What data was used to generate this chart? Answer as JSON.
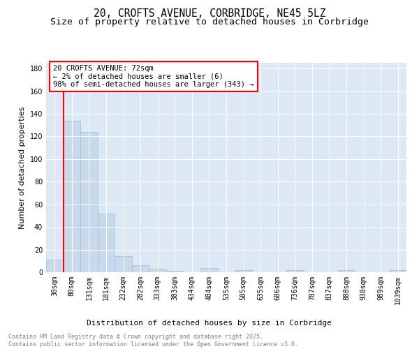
{
  "title": "20, CROFTS AVENUE, CORBRIDGE, NE45 5LZ",
  "subtitle": "Size of property relative to detached houses in Corbridge",
  "xlabel": "Distribution of detached houses by size in Corbridge",
  "ylabel": "Number of detached properties",
  "categories": [
    "30sqm",
    "80sqm",
    "131sqm",
    "181sqm",
    "232sqm",
    "282sqm",
    "333sqm",
    "383sqm",
    "434sqm",
    "484sqm",
    "535sqm",
    "585sqm",
    "635sqm",
    "686sqm",
    "736sqm",
    "787sqm",
    "837sqm",
    "888sqm",
    "938sqm",
    "989sqm",
    "1039sqm"
  ],
  "values": [
    11,
    134,
    124,
    52,
    14,
    6,
    3,
    1,
    0,
    4,
    0,
    2,
    0,
    0,
    2,
    0,
    0,
    2,
    0,
    0,
    2
  ],
  "bar_color": "#c9d9ec",
  "bar_edge_color": "#a0b8d8",
  "background_color": "#dce9f5",
  "grid_color": "#ffffff",
  "red_line_index": 1,
  "ylim": [
    0,
    185
  ],
  "yticks": [
    0,
    20,
    40,
    60,
    80,
    100,
    120,
    140,
    160,
    180
  ],
  "annotation_text": "20 CROFTS AVENUE: 72sqm\n← 2% of detached houses are smaller (6)\n98% of semi-detached houses are larger (343) →",
  "footer_line1": "Contains HM Land Registry data © Crown copyright and database right 2025.",
  "footer_line2": "Contains public sector information licensed under the Open Government Licence v3.0.",
  "title_fontsize": 10.5,
  "subtitle_fontsize": 9.5,
  "axis_label_fontsize": 8,
  "tick_fontsize": 7,
  "annotation_fontsize": 7.5
}
